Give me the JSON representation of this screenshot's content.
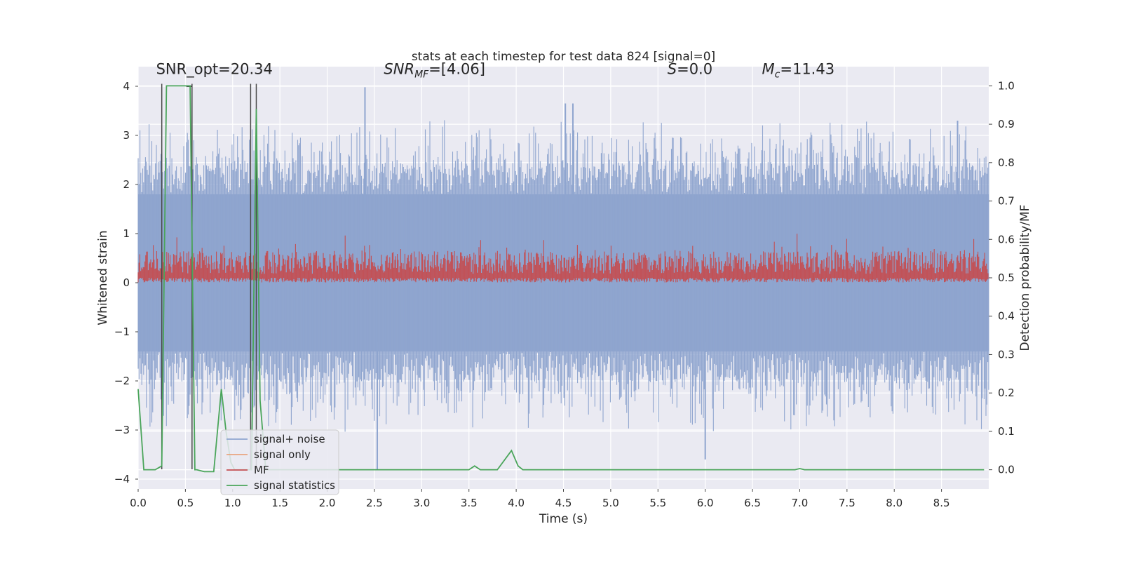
{
  "colors": {
    "background": "#ffffff",
    "plot_bg": "#eaeaf2",
    "grid": "#ffffff",
    "signal_noise": "#8fa5cf",
    "signal_only": "#e9a47f",
    "mf": "#c44e52",
    "stats": "#4aa55a",
    "marker": "#4a4a4a"
  },
  "chart_data": {
    "type": "line",
    "title": "stats at each timestep for test data 824 [signal=0]",
    "xlabel": "Time (s)",
    "ylabel_left": "Whitened strain",
    "ylabel_right": "Detection probability/MF",
    "xlim": [
      0.0,
      9.0
    ],
    "ylim_left": [
      -4.2,
      4.4
    ],
    "ylim_right": [
      -0.05,
      1.05
    ],
    "xticks": [
      0.0,
      0.5,
      1.0,
      1.5,
      2.0,
      2.5,
      3.0,
      3.5,
      4.0,
      4.5,
      5.0,
      5.5,
      6.0,
      6.5,
      7.0,
      7.5,
      8.0,
      8.5
    ],
    "xtick_labels": [
      "0.0",
      "0.5",
      "1.0",
      "1.5",
      "2.0",
      "2.5",
      "3.0",
      "3.5",
      "4.0",
      "4.5",
      "5.0",
      "5.5",
      "6.0",
      "6.5",
      "7.0",
      "7.5",
      "8.0",
      "8.5"
    ],
    "yticks_left": [
      4,
      3,
      2,
      1,
      0,
      -1,
      -2,
      -3,
      -4
    ],
    "ytick_labels_left": [
      "4",
      "3",
      "2",
      "1",
      "0",
      "−1",
      "−2",
      "−3",
      "−4"
    ],
    "yticks_right": [
      1.0,
      0.9,
      0.8,
      0.7,
      0.6,
      0.5,
      0.4,
      0.3,
      0.2,
      0.1,
      0.0
    ],
    "ytick_labels_right": [
      "1.0",
      "0.9",
      "0.8",
      "0.7",
      "0.6",
      "0.5",
      "0.4",
      "0.3",
      "0.2",
      "0.1",
      "0.0"
    ],
    "annotations": [
      {
        "x": 0.19,
        "y": 4.25,
        "label": "SNR_opt=20.34",
        "italic": false
      },
      {
        "x": 2.6,
        "y": 4.25,
        "label": "SNR_MF=[4.06]",
        "italic": true
      },
      {
        "x": 5.6,
        "y": 4.25,
        "label": "S=0.0",
        "italic": true
      },
      {
        "x": 6.6,
        "y": 4.25,
        "label": "M_c=11.43",
        "italic": true
      }
    ],
    "legend": {
      "location": "lower-left",
      "entries": [
        "signal+ noise",
        "signal only",
        "MF",
        "signal statistics"
      ]
    },
    "series": [
      {
        "name": "signal+ noise",
        "axis": "left",
        "style": "noise",
        "envelope_high": 1.8,
        "envelope_low": -1.4,
        "peak_max": 4.0,
        "peak_min": -3.8,
        "notable_peaks": [
          {
            "x": 2.4,
            "y": 3.98
          },
          {
            "x": 4.52,
            "y": 3.65
          },
          {
            "x": 4.6,
            "y": 3.65
          },
          {
            "x": 8.67,
            "y": 3.3
          },
          {
            "x": 2.53,
            "y": -3.8
          },
          {
            "x": 6.0,
            "y": -3.6
          }
        ]
      },
      {
        "name": "signal only",
        "axis": "left",
        "style": "flat",
        "values": []
      },
      {
        "name": "MF",
        "axis": "right",
        "style": "noise",
        "baseline": 0.5,
        "band_high": 0.56,
        "peak_max": 0.62
      },
      {
        "name": "signal statistics",
        "axis": "right",
        "style": "line",
        "x": [
          0.0,
          0.06,
          0.18,
          0.25,
          0.3,
          0.55,
          0.6,
          0.62,
          0.7,
          0.8,
          0.88,
          0.93,
          0.98,
          1.02,
          1.1,
          1.2,
          1.25,
          1.29,
          1.35,
          1.45,
          2.0,
          3.0,
          3.5,
          3.56,
          3.62,
          3.8,
          3.95,
          4.02,
          4.07,
          4.5,
          5.5,
          6.5,
          6.95,
          7.0,
          7.05,
          7.5,
          8.5,
          8.95
        ],
        "y": [
          0.21,
          0.0,
          0.0,
          0.01,
          1.0,
          1.0,
          0.0,
          0.0,
          -0.005,
          -0.005,
          0.21,
          0.1,
          0.02,
          0.0,
          0.0,
          0.0,
          0.94,
          0.18,
          0.0,
          0.0,
          0.0,
          0.0,
          0.0,
          0.01,
          0.0,
          0.0,
          0.05,
          0.01,
          0.0,
          0.0,
          0.0,
          0.0,
          0.0,
          0.003,
          0.0,
          0.0,
          0.0,
          0.0
        ]
      },
      {
        "name": "markers",
        "axis": "left",
        "style": "vlines",
        "x": [
          0.25,
          0.57,
          1.19,
          1.25
        ],
        "ymin": -3.8,
        "ymax": 4.05,
        "hbar_at": 0.54
      }
    ]
  }
}
